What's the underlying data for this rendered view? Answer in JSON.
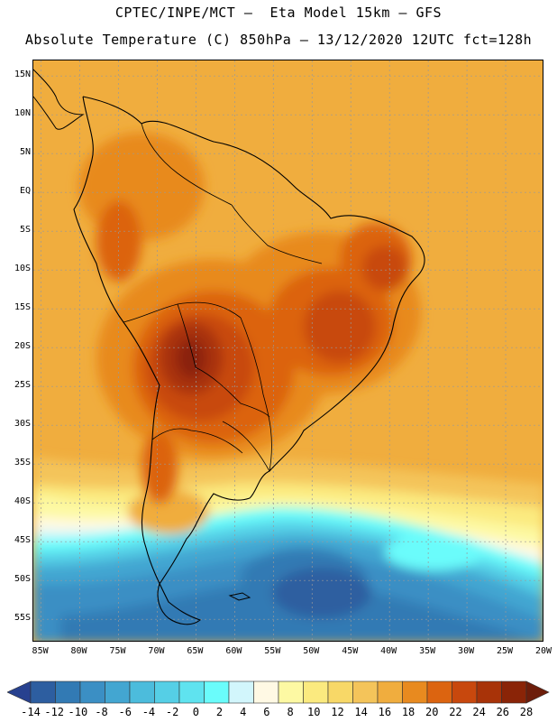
{
  "title_line1": "CPTEC/INPE/MCT –  Eta Model 15km – GFS",
  "title_line2": "Absolute Temperature (C) 850hPa – 13/12/2020 12UTC fct=128h",
  "map": {
    "lat_range": [
      -58,
      17
    ],
    "lon_range": [
      -86,
      -20
    ]
  },
  "lat_labels": [
    "15N",
    "10N",
    "5N",
    "EQ",
    "5S",
    "10S",
    "15S",
    "20S",
    "25S",
    "30S",
    "35S",
    "40S",
    "45S",
    "50S",
    "55S"
  ],
  "lon_labels": [
    "85W",
    "80W",
    "75W",
    "70W",
    "65W",
    "60W",
    "55W",
    "50W",
    "45W",
    "40W",
    "35W",
    "30W",
    "25W",
    "20W"
  ],
  "colorbar": {
    "colors": [
      "#27418f",
      "#2d5ea0",
      "#327ab4",
      "#3b8fc4",
      "#43a6d1",
      "#4cbcdc",
      "#55cfe6",
      "#5fe3ef",
      "#6afcfb",
      "#d2f6fc",
      "#fff9e4",
      "#fdf9a3",
      "#fbea7f",
      "#f8d867",
      "#f4c45a",
      "#f0ad3e",
      "#e88a1f",
      "#dc6410",
      "#c8480d",
      "#a83308",
      "#8a2407",
      "#6d1d0a"
    ],
    "labels": [
      "-14",
      "-12",
      "-10",
      "-8",
      "-6",
      "-4",
      "-2",
      "0",
      "2",
      "4",
      "6",
      "8",
      "10",
      "12",
      "14",
      "16",
      "18",
      "20",
      "22",
      "24",
      "26",
      "28"
    ]
  }
}
